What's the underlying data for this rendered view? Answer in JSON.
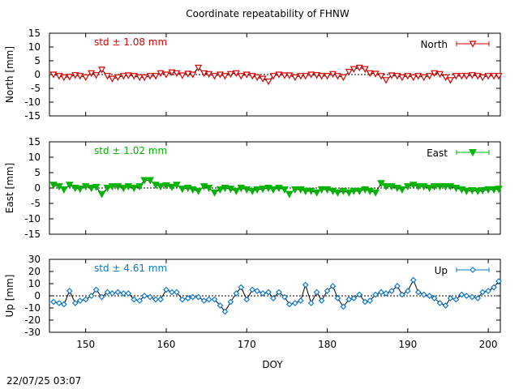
{
  "title": "Coordinate repeatability of FHNW",
  "xlabel": "DOY",
  "timestamp": "22/07/25 03:07",
  "colors": {
    "north": "#dc0000",
    "east": "#00b400",
    "up": "#0a78d2"
  },
  "chart_data": [
    {
      "type": "line",
      "ylabel": "North [mm]",
      "legend": "North",
      "legend_position": "top-right",
      "std_text": "std ± 1.08 mm",
      "xlim": [
        145.5,
        201.5
      ],
      "ylim": [
        -15,
        15
      ],
      "yticks": [
        "15",
        "10",
        "5",
        "0",
        "-5",
        "-10",
        "-15"
      ],
      "x": [
        146.0,
        146.7,
        147.3,
        148.0,
        148.7,
        149.3,
        150.0,
        150.7,
        151.3,
        152.0,
        152.7,
        153.3,
        154.0,
        154.7,
        155.3,
        156.0,
        156.7,
        157.3,
        158.0,
        158.7,
        159.3,
        160.0,
        160.7,
        161.3,
        162.0,
        162.7,
        163.3,
        164.0,
        164.7,
        165.3,
        166.0,
        166.7,
        167.3,
        168.0,
        168.7,
        169.3,
        170.0,
        170.7,
        171.3,
        172.0,
        172.7,
        173.3,
        174.0,
        174.7,
        175.3,
        176.0,
        176.7,
        177.3,
        178.0,
        178.7,
        179.3,
        180.0,
        180.7,
        181.3,
        182.0,
        182.7,
        183.3,
        184.0,
        184.7,
        185.3,
        186.0,
        186.7,
        187.3,
        188.0,
        188.7,
        189.3,
        190.0,
        190.7,
        191.3,
        192.0,
        192.7,
        193.3,
        194.0,
        194.7,
        195.3,
        196.0,
        196.7,
        197.3,
        198.0,
        198.7,
        199.3,
        200.0,
        200.7,
        201.3
      ],
      "series": [
        {
          "name": "North",
          "values": [
            0.0,
            -0.5,
            -1.0,
            -0.8,
            -0.2,
            -0.5,
            -1.0,
            0.5,
            -0.2,
            1.8,
            -0.5,
            -1.5,
            -1.0,
            -0.5,
            -0.3,
            -0.5,
            -1.0,
            -1.0,
            -0.5,
            -0.5,
            0.5,
            0.0,
            0.8,
            0.5,
            -0.3,
            0.3,
            0.0,
            2.5,
            0.5,
            0.2,
            -0.5,
            0.0,
            -0.5,
            0.2,
            0.5,
            -0.5,
            0.0,
            -0.5,
            -1.0,
            -1.5,
            -2.5,
            -0.5,
            0.0,
            -0.3,
            -0.3,
            -1.0,
            -0.5,
            -0.5,
            0.0,
            -0.2,
            -0.5,
            -0.5,
            0.2,
            -0.5,
            -1.0,
            1.0,
            2.0,
            2.5,
            2.0,
            0.5,
            0.3,
            -0.5,
            -2.0,
            -0.3,
            -0.5,
            -1.0,
            -0.5,
            -1.0,
            -0.5,
            -1.0,
            -0.5,
            0.5,
            0.2,
            -1.0,
            -2.0,
            -0.5,
            -0.5,
            -0.5,
            -0.2,
            -0.5,
            -1.0,
            -0.5,
            -0.5,
            -0.5
          ]
        }
      ]
    },
    {
      "type": "line",
      "ylabel": "East [mm]",
      "legend": "East",
      "legend_position": "top-right",
      "std_text": "std ± 1.02 mm",
      "xlim": [
        145.5,
        201.5
      ],
      "ylim": [
        -15,
        15
      ],
      "yticks": [
        "15",
        "10",
        "5",
        "0",
        "-5",
        "-10",
        "-15"
      ],
      "x": [
        146.0,
        146.7,
        147.3,
        148.0,
        148.7,
        149.3,
        150.0,
        150.7,
        151.3,
        152.0,
        152.7,
        153.3,
        154.0,
        154.7,
        155.3,
        156.0,
        156.7,
        157.3,
        158.0,
        158.7,
        159.3,
        160.0,
        160.7,
        161.3,
        162.0,
        162.7,
        163.3,
        164.0,
        164.7,
        165.3,
        166.0,
        166.7,
        167.3,
        168.0,
        168.7,
        169.3,
        170.0,
        170.7,
        171.3,
        172.0,
        172.7,
        173.3,
        174.0,
        174.7,
        175.3,
        176.0,
        176.7,
        177.3,
        178.0,
        178.7,
        179.3,
        180.0,
        180.7,
        181.3,
        182.0,
        182.7,
        183.3,
        184.0,
        184.7,
        185.3,
        186.0,
        186.7,
        187.3,
        188.0,
        188.7,
        189.3,
        190.0,
        190.7,
        191.3,
        192.0,
        192.7,
        193.3,
        194.0,
        194.7,
        195.3,
        196.0,
        196.7,
        197.3,
        198.0,
        198.7,
        199.3,
        200.0,
        200.7,
        201.3
      ],
      "series": [
        {
          "name": "East",
          "values": [
            1.0,
            0.5,
            -0.5,
            1.0,
            0.0,
            -0.3,
            0.5,
            0.0,
            0.3,
            -2.0,
            0.0,
            0.5,
            0.5,
            0.0,
            0.5,
            0.0,
            0.5,
            2.5,
            2.5,
            1.0,
            0.5,
            0.8,
            0.3,
            1.0,
            -0.3,
            0.0,
            -0.5,
            -1.0,
            0.5,
            0.0,
            -1.5,
            -0.5,
            0.0,
            -0.3,
            -1.0,
            0.0,
            -0.5,
            -1.0,
            -0.5,
            -0.3,
            0.0,
            -0.5,
            0.0,
            -0.5,
            -2.0,
            -0.5,
            -0.5,
            -1.0,
            -1.0,
            -1.5,
            -0.5,
            -0.5,
            -1.0,
            -1.5,
            -1.0,
            -1.5,
            -1.0,
            -1.0,
            -0.5,
            -1.0,
            -1.5,
            1.5,
            0.5,
            0.5,
            0.0,
            -0.5,
            0.5,
            1.0,
            0.5,
            0.5,
            0.0,
            0.5,
            0.5,
            0.5,
            0.5,
            0.0,
            -0.5,
            -1.0,
            -0.8,
            -1.0,
            -0.8,
            -0.5,
            -0.5,
            -0.3
          ]
        }
      ]
    },
    {
      "type": "line",
      "ylabel": "Up [mm]",
      "legend": "Up",
      "legend_position": "top-right",
      "std_text": "std ± 4.61 mm",
      "xlim": [
        145.5,
        201.5
      ],
      "ylim": [
        -30,
        30
      ],
      "yticks": [
        "30",
        "20",
        "10",
        "0",
        "-10",
        "-20",
        "-30"
      ],
      "xticks": [
        "150",
        "160",
        "170",
        "180",
        "190",
        "200"
      ],
      "x": [
        146.0,
        146.7,
        147.3,
        148.0,
        148.7,
        149.3,
        150.0,
        150.7,
        151.3,
        152.0,
        152.7,
        153.3,
        154.0,
        154.7,
        155.3,
        156.0,
        156.7,
        157.3,
        158.0,
        158.7,
        159.3,
        160.0,
        160.7,
        161.3,
        162.0,
        162.7,
        163.3,
        164.0,
        164.7,
        165.3,
        166.0,
        166.7,
        167.3,
        168.0,
        168.7,
        169.3,
        170.0,
        170.7,
        171.3,
        172.0,
        172.7,
        173.3,
        174.0,
        174.7,
        175.3,
        176.0,
        176.7,
        177.3,
        178.0,
        178.7,
        179.3,
        180.0,
        180.7,
        181.3,
        182.0,
        182.7,
        183.3,
        184.0,
        184.7,
        185.3,
        186.0,
        186.7,
        187.3,
        188.0,
        188.7,
        189.3,
        190.0,
        190.7,
        191.3,
        192.0,
        192.7,
        193.3,
        194.0,
        194.7,
        195.3,
        196.0,
        196.7,
        197.3,
        198.0,
        198.7,
        199.3,
        200.0,
        200.7,
        201.3
      ],
      "series": [
        {
          "name": "Up",
          "values": [
            -5,
            -6,
            -7,
            4,
            -6,
            -4,
            -3,
            0,
            5,
            -1,
            3,
            2,
            3,
            2,
            2,
            -3,
            -4,
            0,
            -1,
            -3,
            -3,
            5,
            3,
            3,
            -3,
            -2,
            -1,
            -1,
            -4,
            -3,
            -3,
            -8,
            -13,
            -5,
            2,
            7,
            -3,
            5,
            4,
            2,
            3,
            -2,
            3,
            -1,
            -7,
            -6,
            -4,
            9,
            -6,
            3,
            -4,
            4,
            8,
            -2,
            -9,
            -3,
            -2,
            1,
            -5,
            -4,
            1,
            3,
            2,
            4,
            8,
            1,
            4,
            13,
            3,
            1,
            0,
            -2,
            -6,
            -8,
            -2,
            -3,
            1,
            0,
            -1,
            -2,
            3,
            4,
            7,
            12
          ]
        }
      ]
    }
  ]
}
